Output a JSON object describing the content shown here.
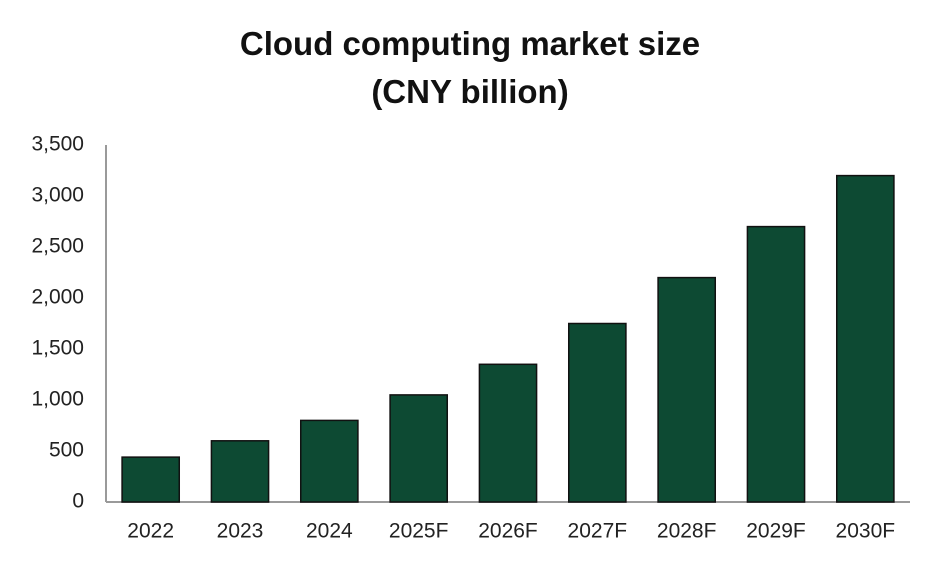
{
  "chart_data": {
    "type": "bar",
    "title": "Cloud computing market size (CNY billion)",
    "categories": [
      "2022",
      "2023",
      "2024",
      "2025F",
      "2026F",
      "2027F",
      "2028F",
      "2029F",
      "2030F"
    ],
    "values": [
      440,
      600,
      800,
      1050,
      1350,
      1750,
      2200,
      2700,
      3200
    ],
    "color": "#0d4a33",
    "ylim": [
      0,
      3500
    ],
    "yticks": [
      0,
      500,
      {
        "value": 1000,
        "label": "1,000"
      },
      {
        "value": 1500,
        "label": "1,500"
      },
      {
        "value": 2000,
        "label": "2,000"
      },
      {
        "value": 2500,
        "label": "2,500"
      },
      {
        "value": 3000,
        "label": "3,000"
      },
      {
        "value": 3500,
        "label": "3,500"
      }
    ],
    "grid": false
  }
}
